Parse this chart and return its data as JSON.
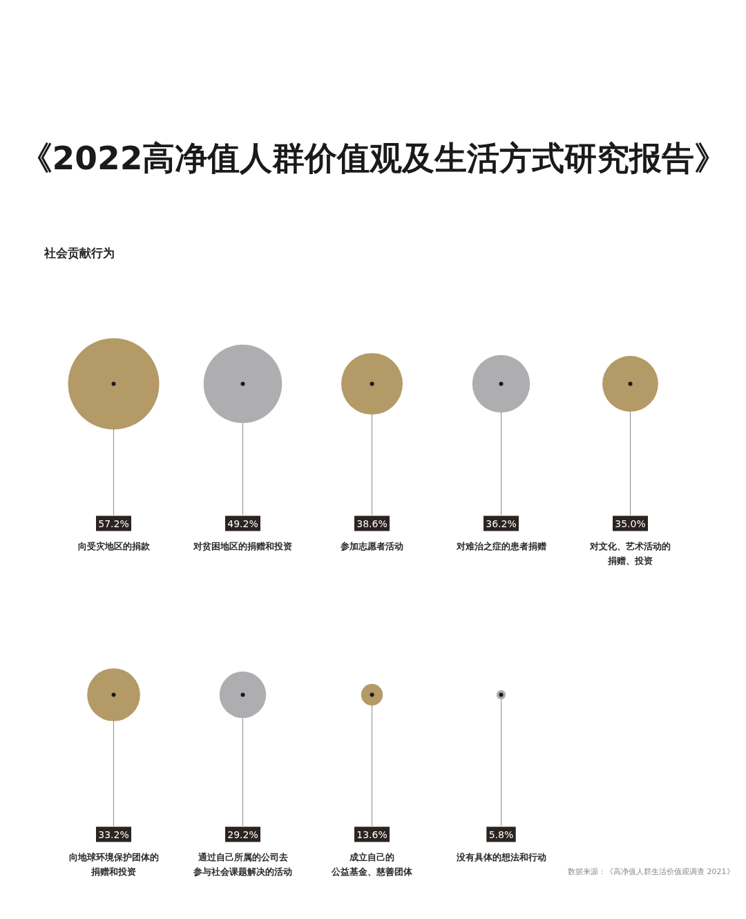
{
  "chart_data": {
    "type": "other",
    "title": "《2022高净值人群价值观及生活方式研究报告》",
    "subtitle": "社会贡献行为",
    "categories": [
      "向受灾地区的捐款",
      "对贫困地区的捐赠和投资",
      "参加志愿者活动",
      "对难治之症的患者捐赠",
      "对文化、艺术活动的捐赠、投资",
      "向地球环境保护团体的捐赠和投资",
      "通过自己所属的公司去参与社会课题解决的活动",
      "成立自己的公益基金、慈善团体",
      "没有具体的想法和行动"
    ],
    "values": [
      57.2,
      49.2,
      38.6,
      36.2,
      35.0,
      33.2,
      29.2,
      13.6,
      5.8
    ],
    "value_labels": [
      "57.2%",
      "49.2%",
      "38.6%",
      "36.2%",
      "35.0%",
      "33.2%",
      "29.2%",
      "13.6%",
      "5.8%"
    ],
    "colors": [
      "#b39a66",
      "#aeadb0",
      "#b39a66",
      "#aeadb0",
      "#b39a66",
      "#b39a66",
      "#aeadb0",
      "#b39a66",
      "#aeadb0"
    ],
    "annotations": [
      "数据来源：《高净值人群生活价值观调查 2021》"
    ]
  }
}
